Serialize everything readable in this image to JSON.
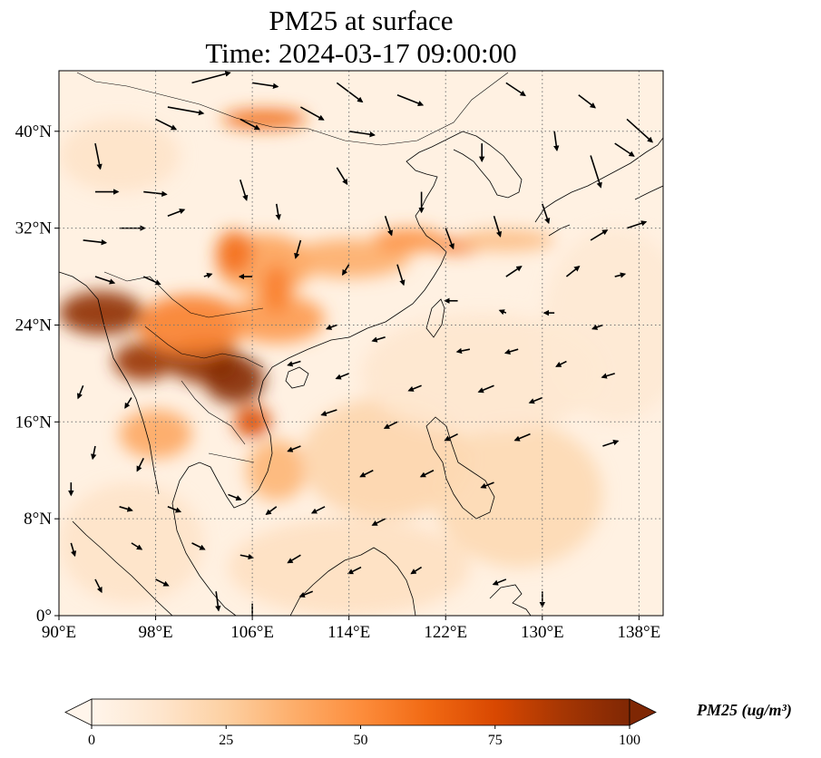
{
  "title": {
    "line1": "PM25 at surface",
    "line2": "Time: 2024-03-17 09:00:00"
  },
  "axes": {
    "lon_range": [
      90,
      140
    ],
    "lat_range": [
      0,
      45
    ],
    "x_ticks": [
      {
        "value": 90,
        "label": "90°E"
      },
      {
        "value": 98,
        "label": "98°E"
      },
      {
        "value": 106,
        "label": "106°E"
      },
      {
        "value": 114,
        "label": "114°E"
      },
      {
        "value": 122,
        "label": "122°E"
      },
      {
        "value": 130,
        "label": "130°E"
      },
      {
        "value": 138,
        "label": "138°E"
      }
    ],
    "y_ticks": [
      {
        "value": 0,
        "label": "0°"
      },
      {
        "value": 8,
        "label": "8°N"
      },
      {
        "value": 16,
        "label": "16°N"
      },
      {
        "value": 24,
        "label": "24°N"
      },
      {
        "value": 32,
        "label": "32°N"
      },
      {
        "value": 40,
        "label": "40°N"
      }
    ],
    "gridlines": "dotted"
  },
  "colorbar": {
    "label": "PM25 (ug/m³)",
    "min": 0,
    "max": 100,
    "extend": "both",
    "ticks": [
      {
        "value": 0,
        "label": "0"
      },
      {
        "value": 25,
        "label": "25"
      },
      {
        "value": 50,
        "label": "50"
      },
      {
        "value": 75,
        "label": "75"
      },
      {
        "value": 100,
        "label": "100"
      }
    ],
    "colormap": [
      "#fff5eb",
      "#fee6ce",
      "#fdd0a2",
      "#fdae6b",
      "#fd8d3c",
      "#f16913",
      "#d94801",
      "#a63603",
      "#7f2704"
    ]
  },
  "map_style": {
    "background": "#fff1e2",
    "coastline_color": "#000000",
    "arrow_color": "#000000"
  },
  "pollution_plumes": [
    {
      "lon": 93.5,
      "lat": 25,
      "rx": 3.5,
      "ry": 1.8,
      "value": 95
    },
    {
      "lon": 97,
      "lat": 21,
      "rx": 2.5,
      "ry": 1.6,
      "value": 92
    },
    {
      "lon": 102,
      "lat": 21,
      "rx": 3,
      "ry": 1.8,
      "value": 95
    },
    {
      "lon": 104.5,
      "lat": 19.5,
      "rx": 2.5,
      "ry": 2,
      "value": 98
    },
    {
      "lon": 106,
      "lat": 16,
      "rx": 1.5,
      "ry": 1.3,
      "value": 75
    },
    {
      "lon": 101,
      "lat": 24,
      "rx": 4.5,
      "ry": 2.5,
      "value": 55
    },
    {
      "lon": 108,
      "lat": 24.5,
      "rx": 4,
      "ry": 2,
      "value": 45
    },
    {
      "lon": 107,
      "lat": 29,
      "rx": 4,
      "ry": 2.5,
      "value": 42
    },
    {
      "lon": 104.5,
      "lat": 30,
      "rx": 1.5,
      "ry": 1.8,
      "value": 60
    },
    {
      "lon": 108,
      "lat": 27,
      "rx": 1.2,
      "ry": 2,
      "value": 55
    },
    {
      "lon": 114,
      "lat": 29.5,
      "rx": 5,
      "ry": 1.6,
      "value": 38
    },
    {
      "lon": 119,
      "lat": 31,
      "rx": 3,
      "ry": 1,
      "value": 48
    },
    {
      "lon": 123,
      "lat": 30.5,
      "rx": 2,
      "ry": 0.6,
      "value": 58
    },
    {
      "lon": 127,
      "lat": 31,
      "rx": 4,
      "ry": 0.9,
      "value": 32
    },
    {
      "lon": 107,
      "lat": 41,
      "rx": 3.5,
      "ry": 0.8,
      "value": 62
    },
    {
      "lon": 98,
      "lat": 15,
      "rx": 3,
      "ry": 2,
      "value": 40
    },
    {
      "lon": 108,
      "lat": 12,
      "rx": 2.5,
      "ry": 2.5,
      "value": 35
    },
    {
      "lon": 117,
      "lat": 13,
      "rx": 7,
      "ry": 5,
      "value": 22
    },
    {
      "lon": 128,
      "lat": 10,
      "rx": 7,
      "ry": 6,
      "value": 20
    },
    {
      "lon": 96,
      "lat": 6,
      "rx": 6,
      "ry": 5,
      "value": 14
    },
    {
      "lon": 114,
      "lat": 4,
      "rx": 10,
      "ry": 4,
      "value": 16
    },
    {
      "lon": 125,
      "lat": 20,
      "rx": 10,
      "ry": 5,
      "value": 12
    },
    {
      "lon": 95,
      "lat": 38,
      "rx": 5,
      "ry": 3,
      "value": 14
    },
    {
      "lon": 136,
      "lat": 24,
      "rx": 6,
      "ry": 8,
      "value": 10
    }
  ],
  "wind_vectors": [
    {
      "lon": 101,
      "lat": 44,
      "u": 3,
      "v": 0.8
    },
    {
      "lon": 106,
      "lat": 44,
      "u": 2,
      "v": -0.3
    },
    {
      "lon": 113,
      "lat": 44,
      "u": 2,
      "v": -1.5
    },
    {
      "lon": 118,
      "lat": 43,
      "u": 2,
      "v": -0.8
    },
    {
      "lon": 127,
      "lat": 44,
      "u": 1.5,
      "v": -1
    },
    {
      "lon": 133,
      "lat": 43,
      "u": 1.3,
      "v": -1
    },
    {
      "lon": 99,
      "lat": 42,
      "u": 2.8,
      "v": -0.5
    },
    {
      "lon": 110,
      "lat": 42,
      "u": 1.8,
      "v": -1
    },
    {
      "lon": 98,
      "lat": 41,
      "u": 1.6,
      "v": -0.8
    },
    {
      "lon": 105,
      "lat": 41,
      "u": 1.5,
      "v": -0.8
    },
    {
      "lon": 114,
      "lat": 40,
      "u": 2,
      "v": -0.3
    },
    {
      "lon": 137,
      "lat": 41,
      "u": 2,
      "v": -1.8
    },
    {
      "lon": 93,
      "lat": 39,
      "u": 0.4,
      "v": -2
    },
    {
      "lon": 136,
      "lat": 39,
      "u": 1.5,
      "v": -1
    },
    {
      "lon": 131,
      "lat": 40,
      "u": 0.2,
      "v": -1.5
    },
    {
      "lon": 125,
      "lat": 39,
      "u": 0,
      "v": -1.4
    },
    {
      "lon": 134,
      "lat": 38,
      "u": 0.8,
      "v": -2.5
    },
    {
      "lon": 97,
      "lat": 35,
      "u": 1.8,
      "v": -0.2
    },
    {
      "lon": 93,
      "lat": 35,
      "u": 1.8,
      "v": 0
    },
    {
      "lon": 105,
      "lat": 36,
      "u": 0.5,
      "v": -1.6
    },
    {
      "lon": 113,
      "lat": 37,
      "u": 0.8,
      "v": -1.3
    },
    {
      "lon": 120,
      "lat": 35,
      "u": 0,
      "v": -1.6
    },
    {
      "lon": 126,
      "lat": 33,
      "u": 0.5,
      "v": -1.6
    },
    {
      "lon": 130,
      "lat": 34,
      "u": 0.5,
      "v": -1.5
    },
    {
      "lon": 137,
      "lat": 32,
      "u": 1.5,
      "v": 0.5
    },
    {
      "lon": 134,
      "lat": 31,
      "u": 1.3,
      "v": 0.8
    },
    {
      "lon": 92,
      "lat": 31,
      "u": 1.8,
      "v": -0.2
    },
    {
      "lon": 95,
      "lat": 32,
      "u": 2,
      "v": 0
    },
    {
      "lon": 99,
      "lat": 33,
      "u": 1.3,
      "v": 0.5
    },
    {
      "lon": 108,
      "lat": 34,
      "u": 0.2,
      "v": -1.2
    },
    {
      "lon": 117,
      "lat": 33,
      "u": 0.5,
      "v": -1.5
    },
    {
      "lon": 122,
      "lat": 32,
      "u": 0.6,
      "v": -1.6
    },
    {
      "lon": 110,
      "lat": 31,
      "u": -0.4,
      "v": -1.4
    },
    {
      "lon": 114,
      "lat": 29,
      "u": -0.5,
      "v": -0.8
    },
    {
      "lon": 118,
      "lat": 29,
      "u": 0.5,
      "v": -1.6
    },
    {
      "lon": 127,
      "lat": 28,
      "u": 1.2,
      "v": 0.8
    },
    {
      "lon": 132,
      "lat": 28,
      "u": 1,
      "v": 0.8
    },
    {
      "lon": 136,
      "lat": 28,
      "u": 0.8,
      "v": 0.2
    },
    {
      "lon": 93,
      "lat": 28,
      "u": 1.5,
      "v": -0.5
    },
    {
      "lon": 97,
      "lat": 28,
      "u": 1.3,
      "v": -0.6
    },
    {
      "lon": 102,
      "lat": 28,
      "u": 0.6,
      "v": 0.2
    },
    {
      "lon": 106,
      "lat": 28,
      "u": -1,
      "v": 0
    },
    {
      "lon": 123,
      "lat": 26,
      "u": -1,
      "v": 0
    },
    {
      "lon": 127,
      "lat": 25,
      "u": -0.5,
      "v": 0.2
    },
    {
      "lon": 131,
      "lat": 25,
      "u": -0.8,
      "v": 0
    },
    {
      "lon": 135,
      "lat": 24,
      "u": -0.8,
      "v": -0.3
    },
    {
      "lon": 113,
      "lat": 24,
      "u": -0.8,
      "v": -0.3
    },
    {
      "lon": 117,
      "lat": 23,
      "u": -1,
      "v": -0.3
    },
    {
      "lon": 124,
      "lat": 22,
      "u": -1,
      "v": -0.2
    },
    {
      "lon": 128,
      "lat": 22,
      "u": -1,
      "v": -0.3
    },
    {
      "lon": 132,
      "lat": 21,
      "u": -0.8,
      "v": -0.4
    },
    {
      "lon": 136,
      "lat": 20,
      "u": -1,
      "v": -0.3
    },
    {
      "lon": 110,
      "lat": 21,
      "u": -1,
      "v": -0.3
    },
    {
      "lon": 114,
      "lat": 20,
      "u": -1,
      "v": -0.4
    },
    {
      "lon": 120,
      "lat": 19,
      "u": -1,
      "v": -0.4
    },
    {
      "lon": 126,
      "lat": 19,
      "u": -1.2,
      "v": -0.5
    },
    {
      "lon": 130,
      "lat": 18,
      "u": -1,
      "v": -0.4
    },
    {
      "lon": 92,
      "lat": 19,
      "u": -0.4,
      "v": -1
    },
    {
      "lon": 96,
      "lat": 18,
      "u": -0.5,
      "v": -0.8
    },
    {
      "lon": 113,
      "lat": 17,
      "u": -1.2,
      "v": -0.4
    },
    {
      "lon": 118,
      "lat": 16,
      "u": -1,
      "v": -0.5
    },
    {
      "lon": 123,
      "lat": 15,
      "u": -1,
      "v": -0.5
    },
    {
      "lon": 129,
      "lat": 15,
      "u": -1.2,
      "v": -0.5
    },
    {
      "lon": 135,
      "lat": 14,
      "u": 1.2,
      "v": 0.4
    },
    {
      "lon": 93,
      "lat": 14,
      "u": -0.2,
      "v": -1
    },
    {
      "lon": 97,
      "lat": 13,
      "u": -0.5,
      "v": -1
    },
    {
      "lon": 110,
      "lat": 14,
      "u": -1,
      "v": -0.4
    },
    {
      "lon": 116,
      "lat": 12,
      "u": -1,
      "v": -0.5
    },
    {
      "lon": 121,
      "lat": 12,
      "u": -1,
      "v": -0.5
    },
    {
      "lon": 126,
      "lat": 11,
      "u": -1,
      "v": -0.4
    },
    {
      "lon": 91,
      "lat": 11,
      "u": 0,
      "v": -1
    },
    {
      "lon": 95,
      "lat": 9,
      "u": 1,
      "v": -0.3
    },
    {
      "lon": 99,
      "lat": 9,
      "u": 1,
      "v": -0.4
    },
    {
      "lon": 104,
      "lat": 10,
      "u": 1,
      "v": -0.4
    },
    {
      "lon": 108,
      "lat": 9,
      "u": -0.8,
      "v": -0.6
    },
    {
      "lon": 112,
      "lat": 9,
      "u": -1,
      "v": -0.5
    },
    {
      "lon": 117,
      "lat": 8,
      "u": -1,
      "v": -0.5
    },
    {
      "lon": 91,
      "lat": 6,
      "u": 0.3,
      "v": -1
    },
    {
      "lon": 96,
      "lat": 6,
      "u": 0.8,
      "v": -0.5
    },
    {
      "lon": 101,
      "lat": 6,
      "u": 1,
      "v": -0.5
    },
    {
      "lon": 105,
      "lat": 5,
      "u": 1,
      "v": -0.2
    },
    {
      "lon": 110,
      "lat": 5,
      "u": -1,
      "v": -0.6
    },
    {
      "lon": 115,
      "lat": 4,
      "u": -1,
      "v": -0.5
    },
    {
      "lon": 120,
      "lat": 4,
      "u": -0.8,
      "v": -0.5
    },
    {
      "lon": 93,
      "lat": 3,
      "u": 0.5,
      "v": -1
    },
    {
      "lon": 98,
      "lat": 3,
      "u": 1,
      "v": -0.5
    },
    {
      "lon": 103,
      "lat": 2,
      "u": 0.2,
      "v": -1.5
    },
    {
      "lon": 106,
      "lat": 1,
      "u": 0,
      "v": -1.4
    },
    {
      "lon": 111,
      "lat": 2,
      "u": -1,
      "v": -0.4
    },
    {
      "lon": 127,
      "lat": 3,
      "u": -1,
      "v": -0.4
    },
    {
      "lon": 130,
      "lat": 2,
      "u": 0,
      "v": -1.2
    }
  ]
}
